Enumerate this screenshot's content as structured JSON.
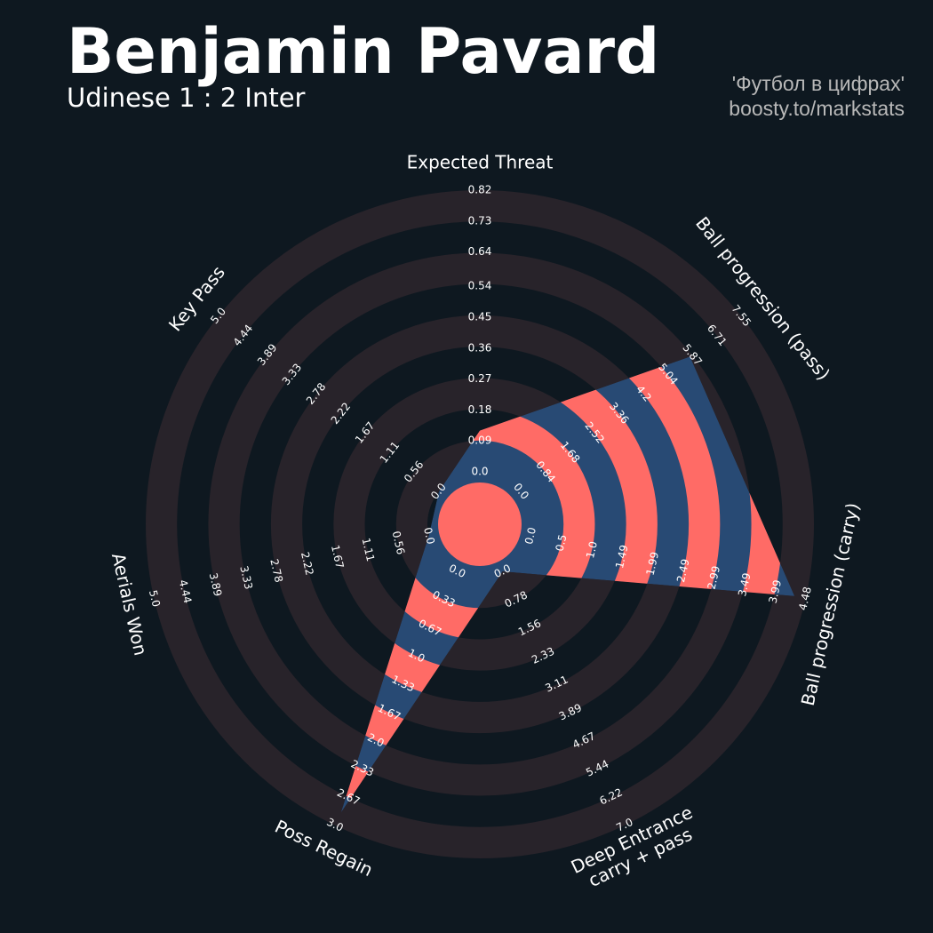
{
  "chart_data": {
    "type": "radar",
    "title": "Benjamin Pavard",
    "subtitle": "Udinese 1 : 2 Inter",
    "credits": [
      "'Футбол в цифрах'",
      "boosty.to/markstats"
    ],
    "colors": {
      "background": "#0e1820",
      "rings": "#28232a",
      "polygon": "#284a74",
      "polygon_alt": "#ff6b66",
      "text": "#ffffff",
      "credits": "#b8b8b8"
    },
    "axes": [
      {
        "label": "Expected Threat",
        "lim": [
          0,
          0.82
        ],
        "value": 0.12,
        "ticks": [
          {
            "value": 0,
            "label": "0.0"
          },
          0.09,
          0.18,
          0.27,
          0.36,
          0.45,
          0.54,
          0.64,
          0.73,
          0.82
        ]
      },
      {
        "label": "Ball progression (pass)",
        "lim": [
          0,
          7.55
        ],
        "value": 5.8,
        "ticks": [
          {
            "value": 0,
            "label": "0.0"
          },
          0.84,
          1.68,
          2.52,
          3.36,
          4.2,
          5.04,
          5.87,
          6.71,
          7.55
        ]
      },
      {
        "label": "Ball progression (carry)",
        "lim": [
          0,
          4.48
        ],
        "value": 4.3,
        "ticks": [
          {
            "value": 0,
            "label": "0.0"
          },
          0.5,
          {
            "value": 1,
            "label": "1.0"
          },
          1.49,
          1.99,
          2.49,
          2.99,
          3.49,
          3.99,
          4.48
        ]
      },
      {
        "label": "Deep Entrance\ncarry + pass",
        "lim": [
          0,
          7
        ],
        "value": 0,
        "ticks": [
          {
            "value": 0,
            "label": "0.0"
          },
          0.78,
          1.56,
          2.33,
          3.11,
          3.89,
          4.67,
          5.44,
          6.22,
          {
            "value": 7,
            "label": "7.0"
          }
        ]
      },
      {
        "label": "Poss Regain",
        "lim": [
          0,
          3
        ],
        "value": 2.85,
        "ticks": [
          {
            "value": 0,
            "label": "0.0"
          },
          0.33,
          0.67,
          {
            "value": 1,
            "label": "1.0"
          },
          1.33,
          1.67,
          {
            "value": 2,
            "label": "2.0"
          },
          2.33,
          2.67,
          {
            "value": 3,
            "label": "3.0"
          }
        ]
      },
      {
        "label": "Aerials Won",
        "lim": [
          0,
          5
        ],
        "value": 0,
        "ticks": [
          {
            "value": 0,
            "label": "0.0"
          },
          0.56,
          1.11,
          1.67,
          2.22,
          2.78,
          3.33,
          3.89,
          4.44,
          {
            "value": 5,
            "label": "5.0"
          }
        ]
      },
      {
        "label": "Key Pass",
        "lim": [
          0,
          5
        ],
        "value": 0,
        "ticks": [
          {
            "value": 0,
            "label": "0.0"
          },
          0.56,
          1.11,
          1.67,
          2.22,
          2.78,
          3.33,
          3.89,
          4.44,
          {
            "value": 5,
            "label": "5.0"
          }
        ]
      }
    ]
  }
}
